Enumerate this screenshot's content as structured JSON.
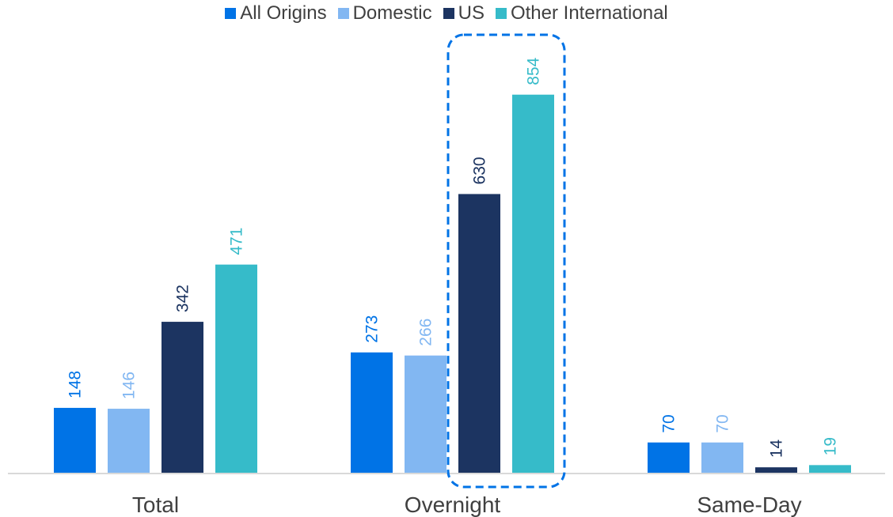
{
  "chart_data": {
    "type": "bar",
    "categories": [
      "Total",
      "Overnight",
      "Same-Day"
    ],
    "series": [
      {
        "name": "All Origins",
        "color": "#0073E6",
        "values": [
          148,
          273,
          70
        ]
      },
      {
        "name": "Domestic",
        "color": "#82B7F2",
        "values": [
          146,
          266,
          70
        ]
      },
      {
        "name": "US",
        "color": "#1C3461",
        "values": [
          342,
          630,
          14
        ]
      },
      {
        "name": "Other International",
        "color": "#36BBC9",
        "values": [
          471,
          854,
          19
        ]
      }
    ],
    "ylim": [
      0,
      900
    ],
    "grid": false,
    "legend": "top-center",
    "highlight": {
      "category": "Overnight",
      "series": [
        "US",
        "Other International"
      ],
      "style": "dashed-rounded-box",
      "color": "#0073E6"
    }
  }
}
